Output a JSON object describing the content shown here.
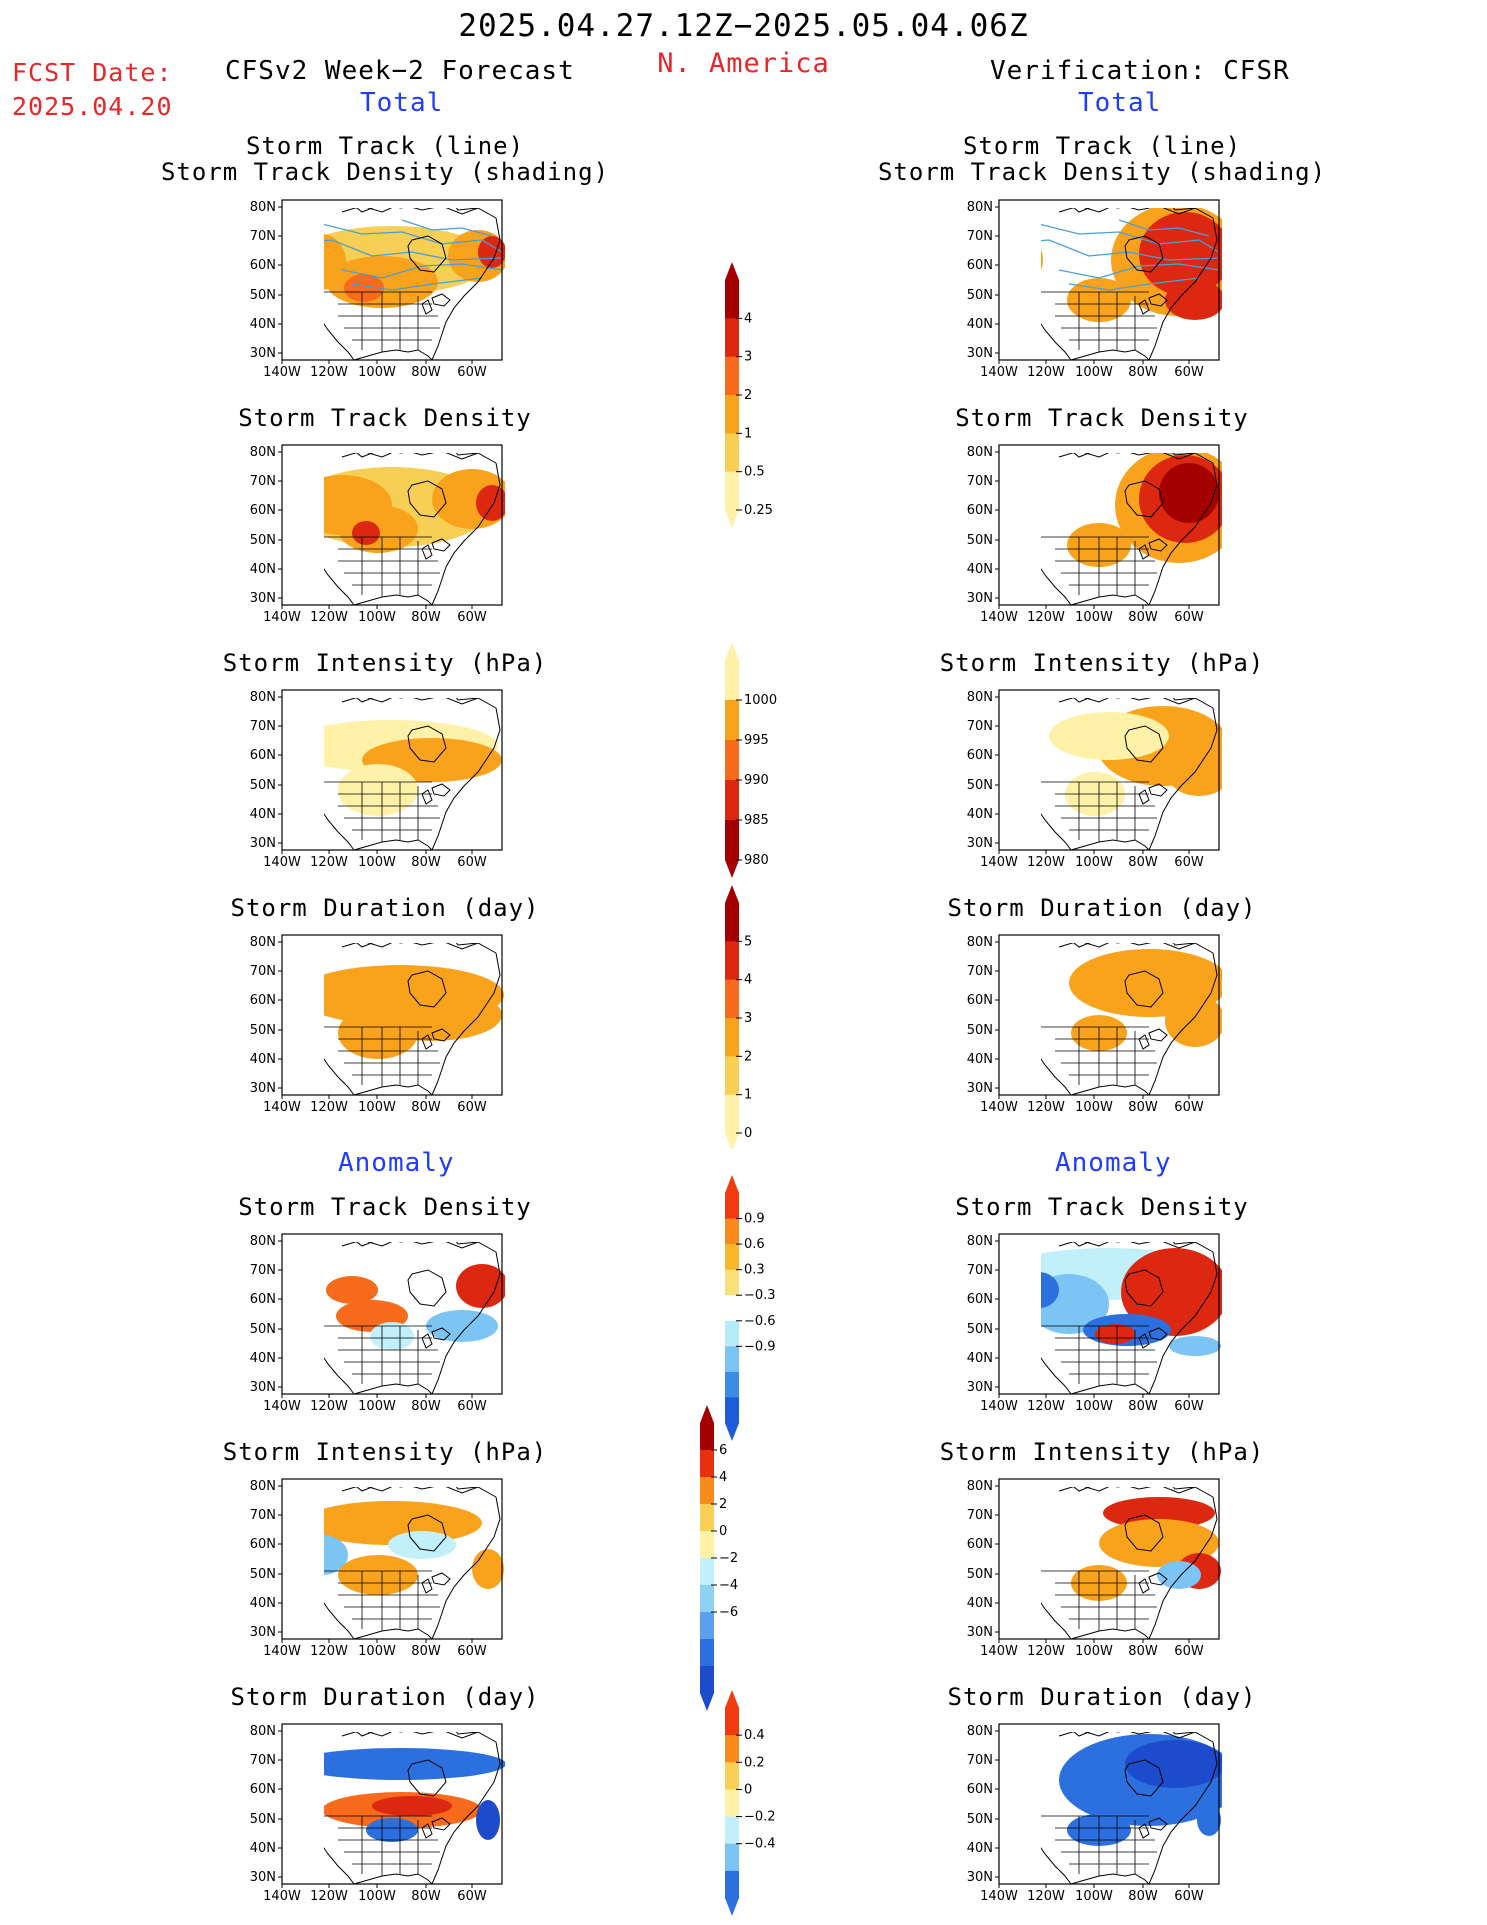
{
  "header": {
    "title": "2025.04.27.12Z−2025.05.04.06Z",
    "region": "N. America",
    "fcst_label": "FCST Date:",
    "fcst_date": "2025.04.20",
    "left_heading": "CFSv2 Week−2 Forecast",
    "right_heading": "Verification: CFSR",
    "total_label": "Total",
    "anomaly_label": "Anomaly"
  },
  "panel_titles": {
    "track_line": "Storm Track (line)",
    "track_shading": "Storm Track Density (shading)",
    "density": "Storm Track Density",
    "intensity": "Storm Intensity (hPa)",
    "duration": "Storm Duration (day)"
  },
  "axes": {
    "lat_labels": [
      "80N",
      "70N",
      "60N",
      "50N",
      "40N",
      "30N"
    ],
    "lon_labels": [
      "140W",
      "120W",
      "100W",
      "80W",
      "60W"
    ]
  },
  "colorbars": {
    "density_total": {
      "labels": [
        "4",
        "3",
        "2",
        "1",
        "0.5",
        "0.25"
      ],
      "colors": [
        "#a50000",
        "#dc2810",
        "#f86a1c",
        "#f9a31c",
        "#f8cf55",
        "#fff2a8"
      ]
    },
    "intensity_total": {
      "labels": [
        "1000",
        "995",
        "990",
        "985",
        "980"
      ],
      "colors": [
        "#fff2a8",
        "#f9a31c",
        "#f86a1c",
        "#dc2810",
        "#a50000"
      ]
    },
    "duration_total": {
      "labels": [
        "5",
        "4",
        "3",
        "2",
        "1",
        "0"
      ],
      "colors": [
        "#a50000",
        "#dc2810",
        "#f86a1c",
        "#f9a31c",
        "#f8cf55",
        "#fff2a8"
      ]
    },
    "density_anom": {
      "labels": [
        "0.9",
        "0.6",
        "0.3",
        "−0.3",
        "−0.6",
        "−0.9"
      ],
      "colors": [
        "#f03a10",
        "#f98b1c",
        "#f9b82c",
        "#f8e07a",
        "#ffffff",
        "#b6ecfa",
        "#7cc4f4",
        "#3c8ce6",
        "#1c5cd8"
      ]
    },
    "intensity_anom": {
      "labels": [
        "6",
        "4",
        "2",
        "0",
        "−2",
        "−4",
        "−6"
      ],
      "colors": [
        "#a50000",
        "#e8300e",
        "#f98b1c",
        "#f8d055",
        "#fff2a8",
        "#c2f0fa",
        "#90d0f4",
        "#5ca0ec",
        "#2c70e0",
        "#1c4ccc"
      ]
    },
    "duration_anom": {
      "labels": [
        "0.4",
        "0.2",
        "0",
        "−0.2",
        "−0.4"
      ],
      "colors": [
        "#f03a10",
        "#f98b1c",
        "#f8d055",
        "#fff2a8",
        "#c2f0fa",
        "#7cc4f4",
        "#2c70e0"
      ]
    }
  },
  "palette": {
    "ltyellow": "#fff2a8",
    "yellow": "#f8cf55",
    "orange": "#f9a31c",
    "dkorange": "#f86a1c",
    "red": "#dc2810",
    "dkred": "#a50000",
    "ltblue": "#c2f0fa",
    "blue": "#7cc4f4",
    "dkblue": "#2c70e0",
    "navy": "#1c4ccc",
    "track_line": "#4a9ed8",
    "land_outline": "#000000"
  }
}
